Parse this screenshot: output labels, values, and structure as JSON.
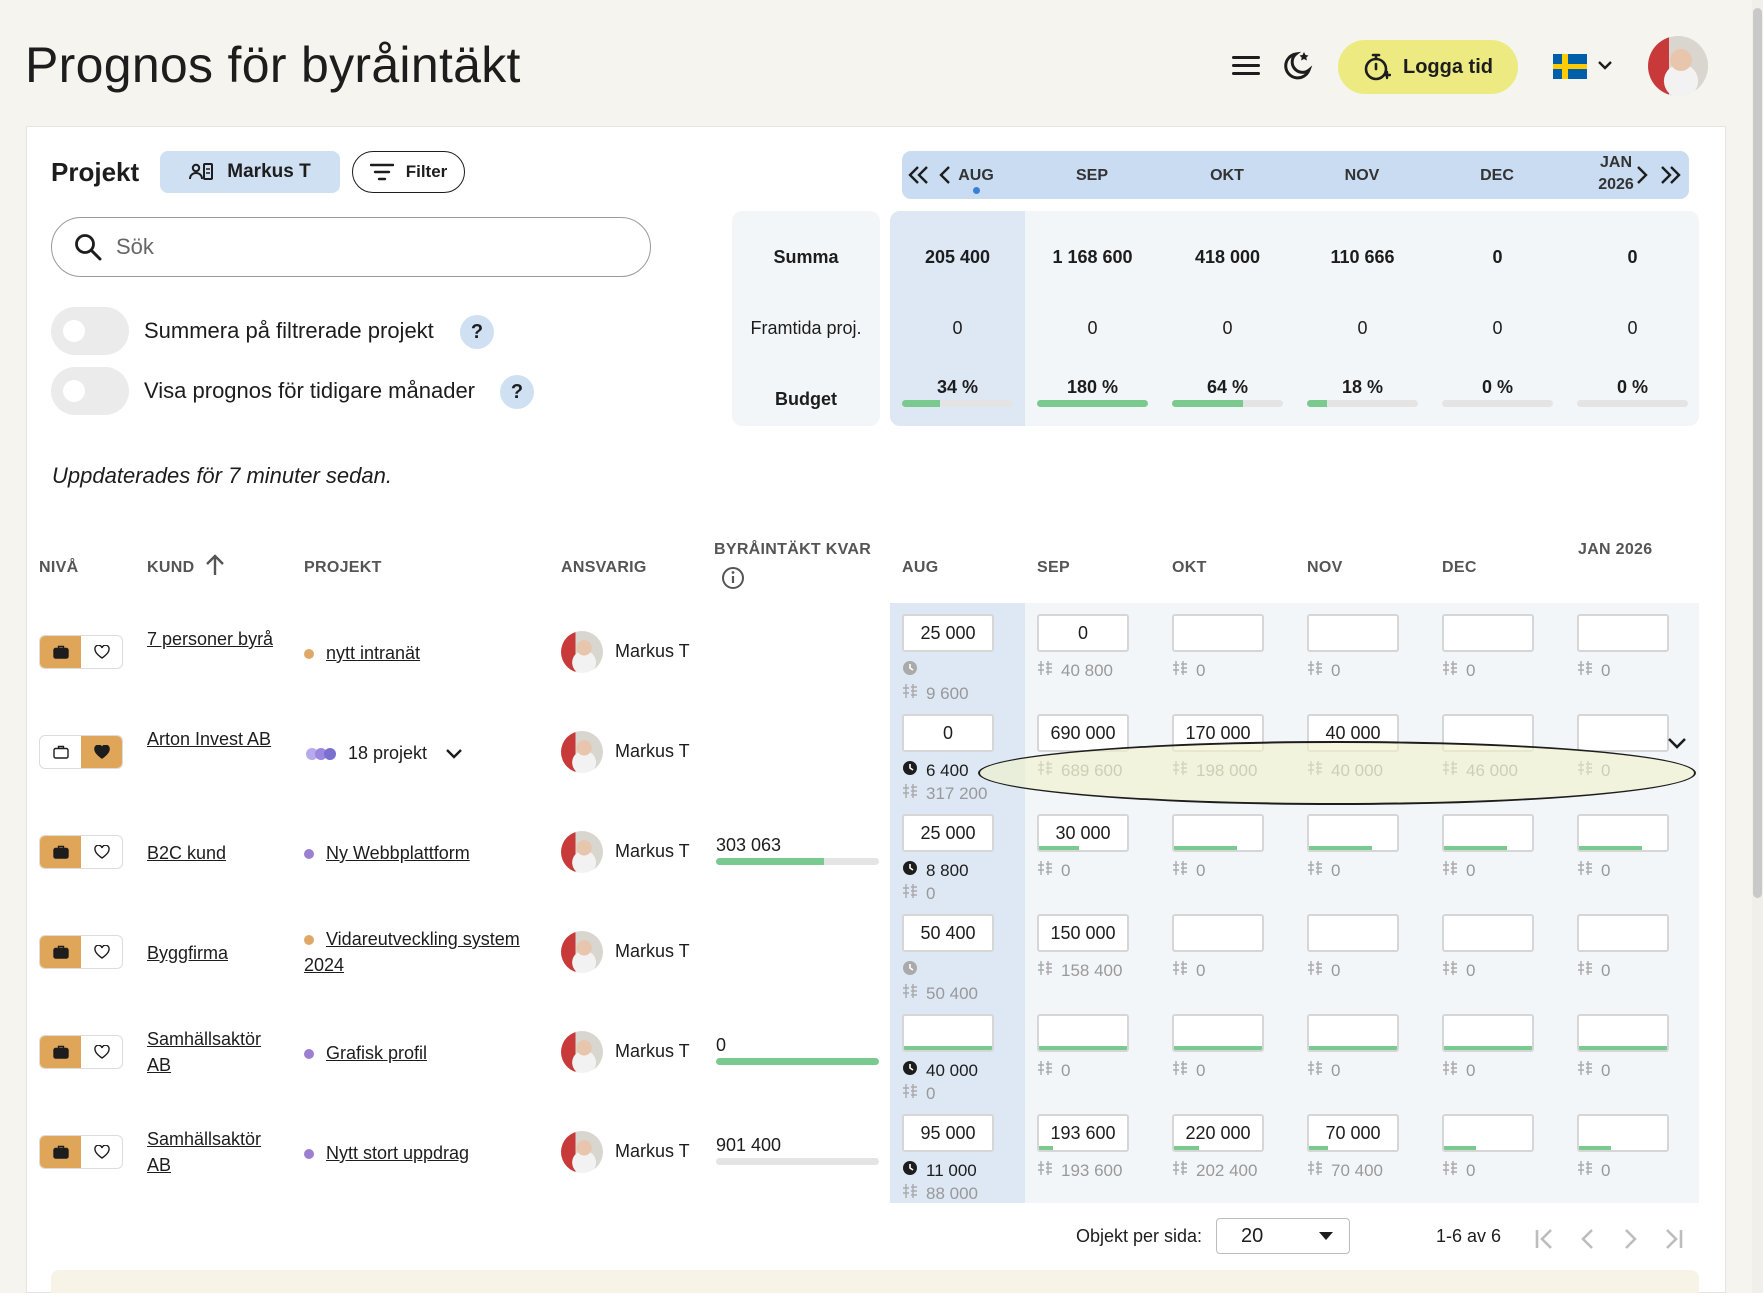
{
  "page": {
    "title": "Prognos för byråintäkt"
  },
  "header": {
    "log_time_label": "Logga tid"
  },
  "toolbar": {
    "project_label": "Projekt",
    "user_filter_label": "Markus T",
    "filter_label": "Filter",
    "search_placeholder": "Sök"
  },
  "toggles": [
    {
      "label": "Summera på filtrerade projekt",
      "help": "?",
      "on": false
    },
    {
      "label": "Visa prognos för tidigare månader",
      "help": "?",
      "on": false
    }
  ],
  "updated_text": "Uppdaterades för 7 minuter sedan.",
  "months_nav": [
    {
      "label": "AUG",
      "current": true
    },
    {
      "label": "SEP"
    },
    {
      "label": "OKT"
    },
    {
      "label": "NOV"
    },
    {
      "label": "DEC"
    },
    {
      "label": "JAN",
      "year": "2026"
    }
  ],
  "summary": {
    "rows": [
      {
        "label": "Summa",
        "bold": true,
        "values": [
          "205 400",
          "1 168 600",
          "418 000",
          "110 666",
          "0",
          "0"
        ]
      },
      {
        "label": "Framtida proj.",
        "bold": false,
        "values": [
          "0",
          "0",
          "0",
          "0",
          "0",
          "0"
        ]
      }
    ],
    "budget": {
      "label": "Budget",
      "percents": [
        "34 %",
        "180 %",
        "64 %",
        "18 %",
        "0 %",
        "0 %"
      ],
      "fill": [
        34,
        100,
        64,
        18,
        0,
        0
      ]
    }
  },
  "table": {
    "headers": {
      "level": "NIVÅ",
      "customer": "KUND",
      "project": "PROJEKT",
      "responsible": "ANSVARIG",
      "remaining": "BYRÅINTÄKT KVAR",
      "months": [
        "AUG",
        "SEP",
        "OKT",
        "NOV",
        "DEC",
        "JAN 2026"
      ]
    },
    "rows": [
      {
        "level": "project",
        "customer": "7 personer byrå",
        "project": "nytt intranät",
        "project_color": "#e0a866",
        "responsible": "Markus T",
        "remaining": "",
        "remaining_fill": null,
        "aug": {
          "input": "25 000",
          "time": "",
          "budget": "9 600",
          "time_dark": false
        },
        "months": [
          {
            "input": "0",
            "sub": "40 800"
          },
          {
            "input": "",
            "sub": "0"
          },
          {
            "input": "",
            "sub": "0"
          },
          {
            "input": "",
            "sub": "0"
          },
          {
            "input": "",
            "sub": "0"
          }
        ]
      },
      {
        "level": "customer",
        "customer": "Arton Invest AB",
        "project": "18 projekt",
        "project_color": "#7b6fd1",
        "responsible": "Markus T",
        "remaining": "",
        "remaining_fill": null,
        "aug": {
          "input": "0",
          "time": "6 400",
          "budget": "317 200",
          "time_dark": true
        },
        "months": [
          {
            "input": "690 000",
            "sub": "689 600"
          },
          {
            "input": "170 000",
            "sub": "198 000"
          },
          {
            "input": "40 000",
            "sub": "40 000"
          },
          {
            "input": "",
            "sub": "46 000"
          },
          {
            "input": "",
            "sub": "0"
          }
        ]
      },
      {
        "level": "project",
        "customer": "B2C kund",
        "project": "Ny Webbplattform",
        "project_color": "#9b7fd1",
        "responsible": "Markus T",
        "remaining": "303 063",
        "remaining_fill": 66,
        "aug": {
          "input": "25 000",
          "time": "8 800",
          "budget": "0",
          "time_dark": true
        },
        "months": [
          {
            "input": "30 000",
            "sub": "0"
          },
          {
            "input": "",
            "sub": "0"
          },
          {
            "input": "",
            "sub": "0"
          },
          {
            "input": "",
            "sub": "0"
          },
          {
            "input": "",
            "sub": "0"
          }
        ]
      },
      {
        "level": "project",
        "customer": "Byggfirma",
        "project": "Vidareutveckling system 2024",
        "project_color": "#e0a866",
        "responsible": "Markus T",
        "remaining": "",
        "remaining_fill": null,
        "aug": {
          "input": "50 400",
          "time": "",
          "budget": "50 400",
          "time_dark": false
        },
        "months": [
          {
            "input": "150 000",
            "sub": "158 400"
          },
          {
            "input": "",
            "sub": "0"
          },
          {
            "input": "",
            "sub": "0"
          },
          {
            "input": "",
            "sub": "0"
          },
          {
            "input": "",
            "sub": "0"
          }
        ]
      },
      {
        "level": "project",
        "customer": "Samhällsaktör AB",
        "project": "Grafisk profil",
        "project_color": "#9b7fd1",
        "responsible": "Markus T",
        "remaining": "0",
        "remaining_fill": 100,
        "aug": {
          "input": "",
          "time": "40 000",
          "budget": "0",
          "time_dark": true
        },
        "months": [
          {
            "input": "",
            "sub": "0"
          },
          {
            "input": "",
            "sub": "0"
          },
          {
            "input": "",
            "sub": "0"
          },
          {
            "input": "",
            "sub": "0"
          },
          {
            "input": "",
            "sub": "0"
          }
        ]
      },
      {
        "level": "project",
        "customer": "Samhällsaktör AB",
        "project": "Nytt stort uppdrag",
        "project_color": "#9b7fd1",
        "responsible": "Markus T",
        "remaining": "901 400",
        "remaining_fill": 0,
        "aug": {
          "input": "95 000",
          "time": "11 000",
          "budget": "88 000",
          "time_dark": true
        },
        "months": [
          {
            "input": "193 600",
            "sub": "193 600"
          },
          {
            "input": "220 000",
            "sub": "202 400"
          },
          {
            "input": "70 000",
            "sub": "70 400"
          },
          {
            "input": "",
            "sub": "0"
          },
          {
            "input": "",
            "sub": "0"
          }
        ]
      }
    ]
  },
  "pagination": {
    "per_page_label": "Objekt per sida:",
    "per_page_value": "20",
    "range": "1-6 av 6"
  }
}
